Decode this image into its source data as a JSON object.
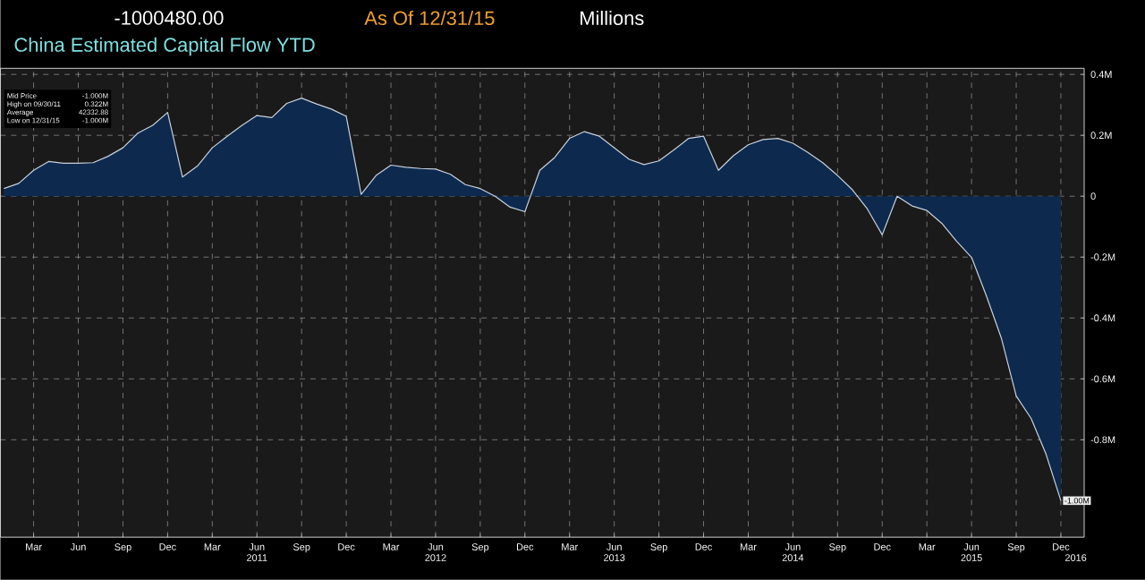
{
  "chart_data": {
    "type": "area",
    "title": "China Estimated Capital Flow YTD",
    "annotations": [
      "-1000480.00",
      "As Of 12/31/15",
      "Millions",
      "Mid Price",
      "-1.000M",
      "High on 09/30/11",
      "0.322M",
      "Average",
      "42332.88",
      "Low on 12/31/15",
      "-1.000M"
    ],
    "x": [
      "2010-01",
      "2010-02",
      "2010-03",
      "2010-04",
      "2010-05",
      "2010-06",
      "2010-07",
      "2010-08",
      "2010-09",
      "2010-10",
      "2010-11",
      "2010-12",
      "2011-01",
      "2011-02",
      "2011-03",
      "2011-04",
      "2011-05",
      "2011-06",
      "2011-07",
      "2011-08",
      "2011-09",
      "2011-10",
      "2011-11",
      "2011-12",
      "2012-01",
      "2012-02",
      "2012-03",
      "2012-04",
      "2012-05",
      "2012-06",
      "2012-07",
      "2012-08",
      "2012-09",
      "2012-10",
      "2012-11",
      "2012-12",
      "2013-01",
      "2013-02",
      "2013-03",
      "2013-04",
      "2013-05",
      "2013-06",
      "2013-07",
      "2013-08",
      "2013-09",
      "2013-10",
      "2013-11",
      "2013-12",
      "2014-01",
      "2014-02",
      "2014-03",
      "2014-04",
      "2014-05",
      "2014-06",
      "2014-07",
      "2014-08",
      "2014-09",
      "2014-10",
      "2014-11",
      "2014-12",
      "2015-01",
      "2015-02",
      "2015-03",
      "2015-04",
      "2015-05",
      "2015-06",
      "2015-07",
      "2015-08",
      "2015-09",
      "2015-10",
      "2015-11",
      "2015-12"
    ],
    "series": [
      {
        "color": "#c8d0dc",
        "values": [
          0.025,
          0.042,
          0.085,
          0.114,
          0.108,
          0.108,
          0.11,
          0.131,
          0.159,
          0.207,
          0.233,
          0.275,
          0.063,
          0.099,
          0.159,
          0.197,
          0.233,
          0.265,
          0.258,
          0.305,
          0.322,
          0.303,
          0.286,
          0.262,
          0.006,
          0.068,
          0.102,
          0.095,
          0.091,
          0.089,
          0.072,
          0.038,
          0.025,
          0.0,
          -0.036,
          -0.051,
          0.085,
          0.127,
          0.19,
          0.212,
          0.197,
          0.159,
          0.121,
          0.104,
          0.116,
          0.152,
          0.19,
          0.197,
          0.085,
          0.133,
          0.169,
          0.186,
          0.19,
          0.174,
          0.144,
          0.11,
          0.068,
          0.021,
          -0.042,
          -0.127,
          0.0,
          -0.032,
          -0.047,
          -0.089,
          -0.148,
          -0.201,
          -0.328,
          -0.466,
          -0.656,
          -0.73,
          -0.847,
          -1.0
        ],
        "value_labels": [
          null,
          null,
          null,
          null,
          null,
          null,
          null,
          null,
          null,
          null,
          null,
          null,
          null,
          null,
          null,
          null,
          null,
          null,
          null,
          null,
          null,
          null,
          null,
          null,
          null,
          null,
          null,
          null,
          null,
          null,
          null,
          null,
          null,
          null,
          null,
          null,
          null,
          null,
          null,
          null,
          null,
          null,
          null,
          null,
          null,
          null,
          null,
          null,
          null,
          null,
          null,
          null,
          null,
          null,
          null,
          null,
          null,
          null,
          null,
          null,
          null,
          null,
          null,
          null,
          null,
          null,
          null,
          null,
          null,
          null,
          null,
          "-1.00M"
        ]
      }
    ],
    "xlim": [
      "2009-12-24",
      "2016-01-18"
    ],
    "xticks": [
      {
        "value": "2010-03",
        "label": "Mar"
      },
      {
        "value": "2010-06",
        "label": "Jun"
      },
      {
        "value": "2010-09",
        "label": "Sep"
      },
      {
        "value": "2010-12",
        "label": "Dec"
      },
      {
        "value": "2011-03",
        "label": "Mar"
      },
      {
        "value": "2011-06",
        "label": "Jun"
      },
      {
        "value": "2011-09",
        "label": "Sep"
      },
      {
        "value": "2011-12",
        "label": "Dec"
      },
      {
        "value": "2012-03",
        "label": "Mar"
      },
      {
        "value": "2012-06",
        "label": "Jun"
      },
      {
        "value": "2012-09",
        "label": "Sep"
      },
      {
        "value": "2012-12",
        "label": "Dec"
      },
      {
        "value": "2013-03",
        "label": "Mar"
      },
      {
        "value": "2013-06",
        "label": "Jun"
      },
      {
        "value": "2013-09",
        "label": "Sep"
      },
      {
        "value": "2013-12",
        "label": "Dec"
      },
      {
        "value": "2014-03",
        "label": "Mar"
      },
      {
        "value": "2014-06",
        "label": "Jun"
      },
      {
        "value": "2014-09",
        "label": "Sep"
      },
      {
        "value": "2014-12",
        "label": "Dec"
      },
      {
        "value": "2015-03",
        "label": "Mar"
      },
      {
        "value": "2015-06",
        "label": "Jun"
      },
      {
        "value": "2015-09",
        "label": "Sep"
      },
      {
        "value": "2015-12",
        "label": "Dec"
      }
    ],
    "x2lim": [
      "2009-12-24",
      "2016-01-18"
    ],
    "x2ticks": [
      {
        "value": "2011-06",
        "label": "2011"
      },
      {
        "value": "2012-06",
        "label": "2012"
      },
      {
        "value": "2013-06",
        "label": "2013"
      },
      {
        "value": "2014-06",
        "label": "2014"
      },
      {
        "value": "2015-06",
        "label": "2015"
      },
      {
        "value": "2016-01",
        "label": "2016"
      }
    ],
    "ylim": [
      -1.12,
      0.42
    ],
    "yticks": [
      {
        "value": 0.4,
        "label": "0.4M"
      },
      {
        "value": 0.2,
        "label": "0.2M"
      },
      0,
      {
        "value": -0.2,
        "label": "-0.2M"
      },
      {
        "value": -0.4,
        "label": "-0.4M"
      },
      {
        "value": -0.6,
        "label": "-0.6M"
      },
      {
        "value": -0.8,
        "label": "-0.8M"
      }
    ],
    "grid": true,
    "marker": "none",
    "line_style": "solid"
  }
}
